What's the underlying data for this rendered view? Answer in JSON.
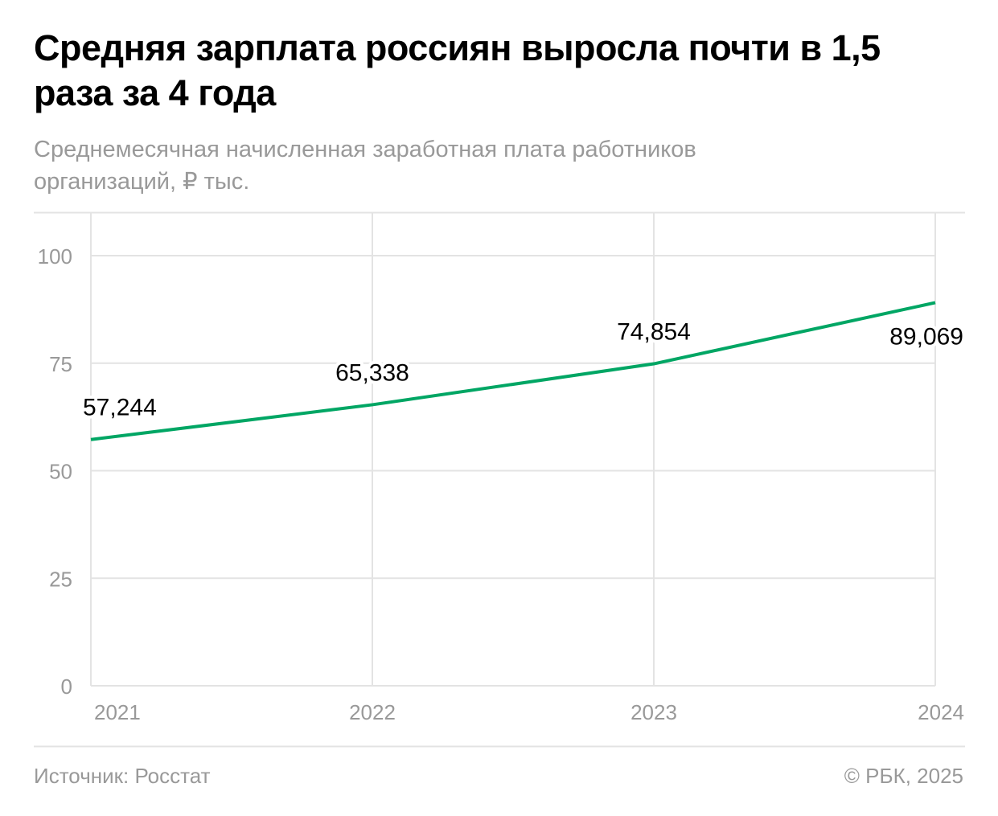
{
  "title": "Средняя зарплата россиян выросла почти в 1,5 раза за 4 года",
  "subtitle": "Среднемесячная начисленная заработная плата работников организаций, ₽ тыс.",
  "footer": {
    "source": "Источник: Росстат",
    "credit": "© РБК, 2025"
  },
  "colors": {
    "line": "#00a664",
    "grid": "#e3e3e3",
    "axis_text": "#999999"
  },
  "chart_data": {
    "type": "line",
    "title": "Средняя зарплата россиян выросла почти в 1,5 раза за 4 года",
    "xlabel": "",
    "ylabel": "₽ тыс.",
    "categories": [
      "2021",
      "2022",
      "2023",
      "2024"
    ],
    "series": [
      {
        "name": "Среднемесячная начисленная заработная плата",
        "values": [
          57.244,
          65.338,
          74.854,
          89.069
        ]
      }
    ],
    "data_labels": [
      "57,244",
      "65,338",
      "74,854",
      "89,069"
    ],
    "yticks": [
      "0",
      "25",
      "50",
      "75",
      "100"
    ],
    "ytick_values": [
      0,
      25,
      50,
      75,
      100
    ],
    "ylim": [
      0,
      110
    ],
    "grid": true,
    "legend": "none"
  }
}
